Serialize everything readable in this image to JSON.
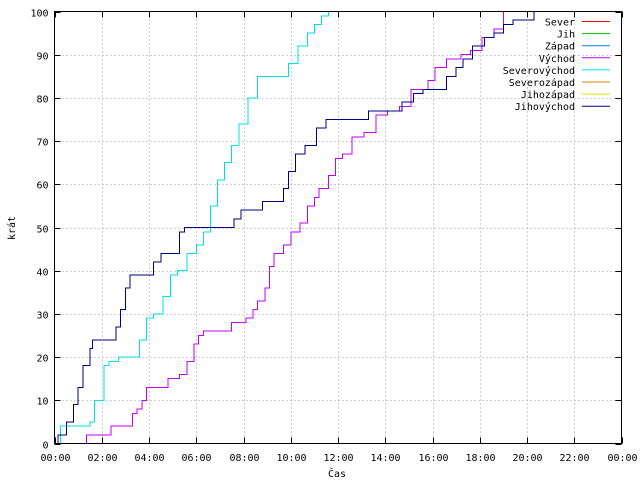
{
  "chart_data": {
    "type": "line",
    "xlabel": "Čas",
    "ylabel": "krát",
    "xlim": [
      0,
      24
    ],
    "ylim": [
      0,
      100
    ],
    "x_ticks": [
      {
        "v": 0,
        "label": "00:00"
      },
      {
        "v": 2,
        "label": "02:00"
      },
      {
        "v": 4,
        "label": "04:00"
      },
      {
        "v": 6,
        "label": "06:00"
      },
      {
        "v": 8,
        "label": "08:00"
      },
      {
        "v": 10,
        "label": "10:00"
      },
      {
        "v": 12,
        "label": "12:00"
      },
      {
        "v": 14,
        "label": "14:00"
      },
      {
        "v": 16,
        "label": "16:00"
      },
      {
        "v": 18,
        "label": "18:00"
      },
      {
        "v": 20,
        "label": "20:00"
      },
      {
        "v": 22,
        "label": "22:00"
      },
      {
        "v": 24,
        "label": "00:00"
      }
    ],
    "y_ticks": [
      {
        "v": 0,
        "label": "0"
      },
      {
        "v": 10,
        "label": "10"
      },
      {
        "v": 20,
        "label": "20"
      },
      {
        "v": 30,
        "label": "30"
      },
      {
        "v": 40,
        "label": "40"
      },
      {
        "v": 50,
        "label": "50"
      },
      {
        "v": 60,
        "label": "60"
      },
      {
        "v": 70,
        "label": "70"
      },
      {
        "v": 80,
        "label": "80"
      },
      {
        "v": 90,
        "label": "90"
      },
      {
        "v": 100,
        "label": "100"
      }
    ],
    "grid": true,
    "legend_position": "top-right",
    "series": [
      {
        "name": "Sever",
        "color": "#ff0000",
        "points": []
      },
      {
        "name": "Jih",
        "color": "#00c000",
        "points": []
      },
      {
        "name": "Západ",
        "color": "#0080ff",
        "points": []
      },
      {
        "name": "Východ",
        "color": "#c000ff",
        "points": [
          [
            1.3,
            0
          ],
          [
            1.35,
            2
          ],
          [
            2.3,
            2
          ],
          [
            2.4,
            4
          ],
          [
            3.2,
            4
          ],
          [
            3.3,
            7
          ],
          [
            3.5,
            8
          ],
          [
            3.7,
            10
          ],
          [
            3.9,
            13
          ],
          [
            4.7,
            13
          ],
          [
            4.8,
            15
          ],
          [
            5.3,
            16
          ],
          [
            5.6,
            19
          ],
          [
            5.9,
            23
          ],
          [
            6.1,
            25
          ],
          [
            6.3,
            26
          ],
          [
            7.2,
            26
          ],
          [
            7.5,
            28
          ],
          [
            8.1,
            29
          ],
          [
            8.4,
            31
          ],
          [
            8.6,
            33
          ],
          [
            8.9,
            36
          ],
          [
            9.1,
            41
          ],
          [
            9.3,
            44
          ],
          [
            9.7,
            46
          ],
          [
            10.0,
            49
          ],
          [
            10.4,
            51
          ],
          [
            10.7,
            55
          ],
          [
            11.0,
            57
          ],
          [
            11.2,
            59
          ],
          [
            11.6,
            62
          ],
          [
            11.9,
            66
          ],
          [
            12.2,
            67
          ],
          [
            12.6,
            71
          ],
          [
            13.1,
            72
          ],
          [
            13.6,
            76
          ],
          [
            14.1,
            77
          ],
          [
            14.6,
            78
          ],
          [
            15.1,
            82
          ],
          [
            15.8,
            84
          ],
          [
            16.1,
            87
          ],
          [
            16.6,
            89
          ],
          [
            17.2,
            90
          ],
          [
            17.6,
            91
          ],
          [
            18.1,
            94
          ],
          [
            18.6,
            96
          ],
          [
            19.0,
            100
          ],
          [
            20.0,
            100
          ]
        ]
      },
      {
        "name": "Severovýchod",
        "color": "#00e0e0",
        "points": [
          [
            0.1,
            0
          ],
          [
            0.25,
            4
          ],
          [
            1.2,
            4
          ],
          [
            1.5,
            5
          ],
          [
            1.7,
            10
          ],
          [
            2.1,
            18
          ],
          [
            2.3,
            19
          ],
          [
            2.7,
            20
          ],
          [
            3.3,
            20
          ],
          [
            3.6,
            24
          ],
          [
            3.9,
            29
          ],
          [
            4.2,
            30
          ],
          [
            4.6,
            34
          ],
          [
            4.9,
            39
          ],
          [
            5.2,
            40
          ],
          [
            5.6,
            44
          ],
          [
            6.0,
            46
          ],
          [
            6.3,
            49
          ],
          [
            6.6,
            55
          ],
          [
            6.9,
            61
          ],
          [
            7.2,
            65
          ],
          [
            7.5,
            69
          ],
          [
            7.8,
            74
          ],
          [
            8.2,
            80
          ],
          [
            8.6,
            85
          ],
          [
            9.6,
            85
          ],
          [
            9.9,
            88
          ],
          [
            10.3,
            92
          ],
          [
            10.7,
            95
          ],
          [
            11.0,
            97
          ],
          [
            11.3,
            99
          ],
          [
            11.6,
            100
          ]
        ]
      },
      {
        "name": "Severozápad",
        "color": "#e08000",
        "points": []
      },
      {
        "name": "Jihozápad",
        "color": "#e0e000",
        "points": []
      },
      {
        "name": "Jihovýchod",
        "color": "#000080",
        "points": [
          [
            0.05,
            0
          ],
          [
            0.15,
            2
          ],
          [
            0.5,
            5
          ],
          [
            0.8,
            9
          ],
          [
            1.0,
            13
          ],
          [
            1.2,
            18
          ],
          [
            1.5,
            22
          ],
          [
            1.6,
            24
          ],
          [
            2.4,
            24
          ],
          [
            2.6,
            27
          ],
          [
            2.8,
            31
          ],
          [
            3.0,
            36
          ],
          [
            3.2,
            39
          ],
          [
            3.9,
            39
          ],
          [
            4.2,
            42
          ],
          [
            4.5,
            44
          ],
          [
            5.0,
            44
          ],
          [
            5.3,
            49
          ],
          [
            5.5,
            50
          ],
          [
            7.3,
            50
          ],
          [
            7.6,
            52
          ],
          [
            7.9,
            54
          ],
          [
            8.6,
            54
          ],
          [
            8.8,
            56
          ],
          [
            9.5,
            56
          ],
          [
            9.7,
            59
          ],
          [
            9.9,
            63
          ],
          [
            10.2,
            67
          ],
          [
            10.6,
            69
          ],
          [
            11.1,
            73
          ],
          [
            11.5,
            75
          ],
          [
            13.0,
            75
          ],
          [
            13.3,
            77
          ],
          [
            14.3,
            77
          ],
          [
            14.7,
            79
          ],
          [
            15.2,
            81
          ],
          [
            15.6,
            82
          ],
          [
            16.3,
            82
          ],
          [
            16.6,
            85
          ],
          [
            17.0,
            87
          ],
          [
            17.3,
            89
          ],
          [
            17.7,
            92
          ],
          [
            18.2,
            94
          ],
          [
            18.6,
            95
          ],
          [
            19.0,
            97
          ],
          [
            19.4,
            98
          ],
          [
            19.9,
            98
          ],
          [
            20.3,
            100
          ],
          [
            21.2,
            100
          ]
        ]
      }
    ]
  }
}
